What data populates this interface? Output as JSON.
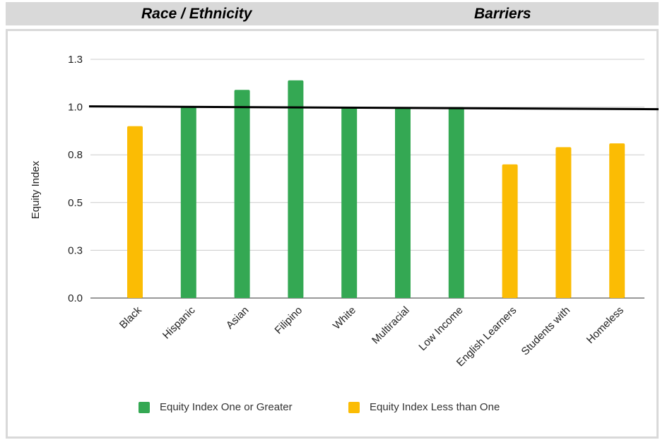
{
  "header": {
    "left_title": "Race / Ethnicity",
    "right_title": "Barriers"
  },
  "colors": {
    "greater": "#34a853",
    "less": "#fbbc04",
    "grid": "#cccccc",
    "reference_line": "#000000",
    "panel_border": "#d9d9d9"
  },
  "chart_data": {
    "type": "bar",
    "title": "",
    "xlabel": "",
    "ylabel": "Equity Index",
    "ylim": [
      0,
      1.25
    ],
    "yticks": [
      0.0,
      0.25,
      0.5,
      0.75,
      1.0,
      1.25
    ],
    "ytick_labels": [
      "0.0",
      "0.3",
      "0.5",
      "0.8",
      "1.0",
      "1.3"
    ],
    "reference_line": 1.0,
    "grid": true,
    "legend_position": "bottom",
    "categories": [
      "Black",
      "Hispanic",
      "Asian",
      "Filipino",
      "White",
      "Multiracial",
      "Low Income",
      "English Learners",
      "Students with",
      "Homeless"
    ],
    "series": [
      {
        "name": "Equity Index One or Greater",
        "color": "#34a853",
        "values": [
          null,
          1.0,
          1.09,
          1.14,
          1.0,
          1.0,
          1.0,
          null,
          null,
          null
        ]
      },
      {
        "name": "Equity Index Less than One",
        "color": "#fbbc04",
        "values": [
          0.9,
          null,
          null,
          null,
          null,
          null,
          null,
          0.7,
          0.79,
          0.81
        ]
      }
    ]
  }
}
